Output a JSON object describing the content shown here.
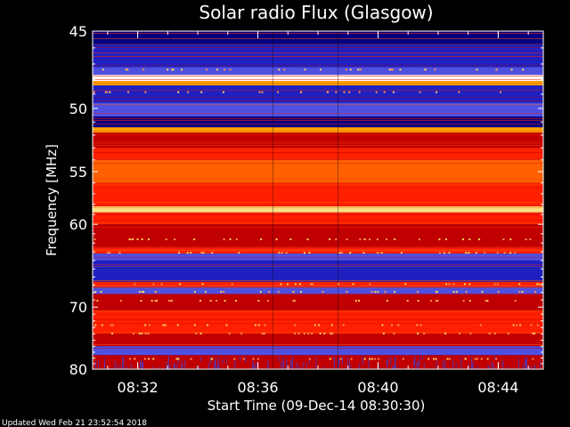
{
  "chart_data": {
    "type": "heatmap",
    "title": "Solar radio Flux (Glasgow)",
    "ylabel": "Frequency [MHz]",
    "xlabel": "Start Time (09-Dec-14 08:30:30)",
    "footer": "Updated Wed Feb 21 23:52:54 2018",
    "y_ticks": [
      45,
      50,
      55,
      60,
      70,
      80
    ],
    "y_tick_labels": [
      "45",
      "50",
      "55",
      "60",
      "70",
      "80"
    ],
    "y_range": [
      45,
      80
    ],
    "x_ticks": [
      "08:32",
      "08:36",
      "08:40",
      "08:44"
    ],
    "x_range_minutes": [
      "08:30:30",
      "08:45:30"
    ],
    "segment_boundaries": [
      "08:36:30",
      "08:38:40"
    ],
    "colormap": [
      "#000080",
      "#2020c0",
      "#5050e0",
      "#c00000",
      "#ff2000",
      "#ff6000",
      "#ffa000",
      "#ffe080",
      "#ffffff"
    ],
    "bands": [
      {
        "from": 45.0,
        "to": 45.8,
        "level": 0
      },
      {
        "from": 45.8,
        "to": 47.2,
        "level": 1
      },
      {
        "from": 47.2,
        "to": 47.7,
        "level": 2
      },
      {
        "from": 47.7,
        "to": 48.1,
        "level": 8
      },
      {
        "from": 48.1,
        "to": 48.4,
        "level": 6
      },
      {
        "from": 48.4,
        "to": 49.6,
        "level": 1
      },
      {
        "from": 49.6,
        "to": 50.6,
        "level": 2
      },
      {
        "from": 50.6,
        "to": 51.4,
        "level": 0
      },
      {
        "from": 51.4,
        "to": 51.8,
        "level": 6
      },
      {
        "from": 51.8,
        "to": 53.0,
        "level": 3
      },
      {
        "from": 53.0,
        "to": 54.0,
        "level": 4
      },
      {
        "from": 54.0,
        "to": 56.0,
        "level": 5
      },
      {
        "from": 56.0,
        "to": 58.2,
        "level": 4
      },
      {
        "from": 58.2,
        "to": 58.8,
        "level": 7
      },
      {
        "from": 58.8,
        "to": 60.0,
        "level": 4
      },
      {
        "from": 60.0,
        "to": 62.5,
        "level": 3
      },
      {
        "from": 62.5,
        "to": 63.2,
        "level": 4
      },
      {
        "from": 63.2,
        "to": 64.0,
        "level": 2
      },
      {
        "from": 64.0,
        "to": 66.6,
        "level": 1
      },
      {
        "from": 66.6,
        "to": 67.3,
        "level": 4
      },
      {
        "from": 67.3,
        "to": 68.2,
        "level": 2
      },
      {
        "from": 68.2,
        "to": 70.5,
        "level": 3
      },
      {
        "from": 70.5,
        "to": 74.0,
        "level": 4
      },
      {
        "from": 74.0,
        "to": 76.0,
        "level": 3
      },
      {
        "from": 76.0,
        "to": 77.5,
        "level": 2
      },
      {
        "from": 77.5,
        "to": 80.0,
        "level": 3
      }
    ]
  }
}
